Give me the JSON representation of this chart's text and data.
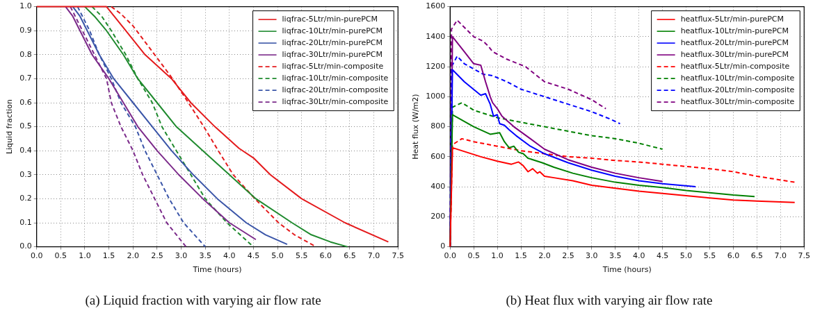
{
  "chart_data": [
    {
      "type": "line",
      "xlabel": "Time (hours)",
      "ylabel": "Liquid fraction",
      "annotations": [
        "(a) Liquid fraction with varying air flow rate"
      ],
      "xlim": [
        0,
        7.5
      ],
      "xticks": [
        {
          "value": 0,
          "label": "0.0"
        },
        {
          "value": 0.5,
          "label": "0.5"
        },
        {
          "value": 1,
          "label": "1.0"
        },
        {
          "value": 1.5,
          "label": "1.5"
        },
        {
          "value": 2,
          "label": "2.0"
        },
        {
          "value": 2.5,
          "label": "2.5"
        },
        {
          "value": 3,
          "label": "3.0"
        },
        {
          "value": 3.5,
          "label": "3.5"
        },
        {
          "value": 4,
          "label": "4.0"
        },
        {
          "value": 4.5,
          "label": "4.5"
        },
        {
          "value": 5,
          "label": "5.0"
        },
        {
          "value": 5.5,
          "label": "5.5"
        },
        {
          "value": 6,
          "label": "6.0"
        },
        {
          "value": 6.5,
          "label": "6.5"
        },
        {
          "value": 7,
          "label": "7.0"
        },
        {
          "value": 7.5,
          "label": "7.5"
        }
      ],
      "ylim": [
        0,
        1
      ],
      "yticks": [
        {
          "value": 0,
          "label": "0.0"
        },
        {
          "value": 0.1,
          "label": "0.1"
        },
        {
          "value": 0.2,
          "label": "0.2"
        },
        {
          "value": 0.3,
          "label": "0.3"
        },
        {
          "value": 0.4,
          "label": "0.4"
        },
        {
          "value": 0.5,
          "label": "0.5"
        },
        {
          "value": 0.6,
          "label": "0.6"
        },
        {
          "value": 0.7,
          "label": "0.7"
        },
        {
          "value": 0.8,
          "label": "0.8"
        },
        {
          "value": 0.9,
          "label": "0.9"
        },
        {
          "value": 1,
          "label": "1.0"
        }
      ],
      "grid": true,
      "legend": "top right",
      "series": [
        {
          "name": "liqfrac-5Ltr/min-purePCM",
          "color": "#e41a1c",
          "line_style": "solid",
          "x": [
            0,
            1.45,
            1.65,
            1.85,
            2.25,
            2.8,
            3.2,
            3.7,
            4.2,
            4.5,
            4.85,
            5.5,
            6.4,
            7.3
          ],
          "values": [
            1,
            1,
            0.95,
            0.9,
            0.8,
            0.7,
            0.6,
            0.5,
            0.41,
            0.37,
            0.3,
            0.2,
            0.1,
            0.02
          ]
        },
        {
          "name": "liqfrac-10Ltr/min-purePCM",
          "color": "#1f8a2e",
          "line_style": "solid",
          "x": [
            1.0,
            1.2,
            1.45,
            1.8,
            2.1,
            2.5,
            2.9,
            3.45,
            4.0,
            4.55,
            5.3,
            5.7,
            6.1,
            6.45
          ],
          "values": [
            1,
            0.96,
            0.9,
            0.8,
            0.7,
            0.6,
            0.5,
            0.4,
            0.3,
            0.2,
            0.1,
            0.05,
            0.02,
            0
          ]
        },
        {
          "name": "liqfrac-20Ltr/min-purePCM",
          "color": "#3a55a8",
          "line_style": "solid",
          "x": [
            0.75,
            0.9,
            1.05,
            1.3,
            1.6,
            2.0,
            2.4,
            2.8,
            3.25,
            3.75,
            4.35,
            4.75,
            5.2
          ],
          "values": [
            1,
            0.96,
            0.9,
            0.8,
            0.7,
            0.6,
            0.5,
            0.4,
            0.3,
            0.2,
            0.1,
            0.05,
            0.01
          ]
        },
        {
          "name": "liqfrac-30Ltr/min-purePCM",
          "color": "#7b2a8a",
          "line_style": "solid",
          "x": [
            0.6,
            0.75,
            0.9,
            1.15,
            1.5,
            1.8,
            2.1,
            2.5,
            2.95,
            3.45,
            4.0,
            4.55
          ],
          "values": [
            1,
            0.96,
            0.9,
            0.8,
            0.7,
            0.6,
            0.5,
            0.4,
            0.3,
            0.2,
            0.1,
            0.03
          ]
        },
        {
          "name": "liqfrac-5Ltr/min-composite",
          "color": "#e41a1c",
          "line_style": "dashed",
          "x": [
            1.55,
            1.75,
            2.0,
            2.45,
            2.82,
            3.15,
            3.47,
            3.77,
            4.08,
            4.53,
            5.02,
            5.35,
            5.8
          ],
          "values": [
            1,
            0.97,
            0.92,
            0.8,
            0.7,
            0.6,
            0.5,
            0.4,
            0.3,
            0.2,
            0.1,
            0.05,
            0
          ]
        },
        {
          "name": "liqfrac-10Ltr/min-composite",
          "color": "#1f8a2e",
          "line_style": "dashed",
          "x": [
            1.15,
            1.35,
            1.55,
            1.85,
            2.1,
            2.4,
            2.6,
            2.9,
            3.2,
            3.5,
            3.95,
            4.5
          ],
          "values": [
            1,
            0.96,
            0.9,
            0.8,
            0.7,
            0.6,
            0.5,
            0.4,
            0.3,
            0.2,
            0.1,
            0
          ]
        },
        {
          "name": "liqfrac-20Ltr/min-composite",
          "color": "#3a55a8",
          "line_style": "dashed",
          "x": [
            0.85,
            0.95,
            1.1,
            1.3,
            1.55,
            1.75,
            2.05,
            2.25,
            2.5,
            2.75,
            3.05,
            3.5
          ],
          "values": [
            1,
            0.96,
            0.9,
            0.8,
            0.7,
            0.6,
            0.5,
            0.4,
            0.3,
            0.2,
            0.1,
            0
          ]
        },
        {
          "name": "liqfrac-30Ltr/min-composite",
          "color": "#7b2a8a",
          "line_style": "dashed",
          "x": [
            0.7,
            0.8,
            0.95,
            1.2,
            1.45,
            1.55,
            1.75,
            2.0,
            2.2,
            2.45,
            2.7,
            3.1
          ],
          "values": [
            1,
            0.96,
            0.9,
            0.8,
            0.7,
            0.6,
            0.5,
            0.4,
            0.3,
            0.2,
            0.1,
            0
          ]
        }
      ]
    },
    {
      "type": "line",
      "xlabel": "Time (hours)",
      "ylabel": "Heat flux (W/m2)",
      "annotations": [
        "(b) Heat flux with varying air flow rate"
      ],
      "xlim": [
        0,
        7.5
      ],
      "xticks": [
        {
          "value": 0,
          "label": "0.0"
        },
        {
          "value": 0.5,
          "label": "0.5"
        },
        {
          "value": 1,
          "label": "1.0"
        },
        {
          "value": 1.5,
          "label": "1.5"
        },
        {
          "value": 2,
          "label": "2.0"
        },
        {
          "value": 2.5,
          "label": "2.5"
        },
        {
          "value": 3,
          "label": "3.0"
        },
        {
          "value": 3.5,
          "label": "3.5"
        },
        {
          "value": 4,
          "label": "4.0"
        },
        {
          "value": 4.5,
          "label": "4.5"
        },
        {
          "value": 5,
          "label": "5.0"
        },
        {
          "value": 5.5,
          "label": "5.5"
        },
        {
          "value": 6,
          "label": "6.0"
        },
        {
          "value": 6.5,
          "label": "6.5"
        },
        {
          "value": 7,
          "label": "7.0"
        },
        {
          "value": 7.5,
          "label": "7.5"
        }
      ],
      "ylim": [
        0,
        1600
      ],
      "yticks": [
        0,
        200,
        400,
        600,
        800,
        1000,
        1200,
        1400,
        1600
      ],
      "grid": true,
      "legend": "top right",
      "series": [
        {
          "name": "heatflux-5Ltr/min-purePCM",
          "color": "#ff0000",
          "line_style": "solid",
          "x": [
            0,
            0.05,
            0.65,
            1.0,
            1.3,
            1.45,
            1.55,
            1.65,
            1.75,
            1.85,
            1.9,
            2.0,
            2.2,
            2.6,
            3.0,
            3.5,
            4.0,
            4.5,
            5.0,
            5.5,
            6.0,
            6.5,
            7.3
          ],
          "values": [
            0,
            660,
            600,
            570,
            550,
            565,
            540,
            500,
            520,
            490,
            500,
            470,
            460,
            440,
            410,
            390,
            370,
            355,
            340,
            325,
            312,
            305,
            295
          ]
        },
        {
          "name": "heatflux-10Ltr/min-purePCM",
          "color": "#008000",
          "line_style": "solid",
          "x": [
            0,
            0.05,
            0.5,
            0.85,
            1.05,
            1.15,
            1.25,
            1.35,
            1.45,
            1.55,
            1.65,
            1.95,
            2.2,
            2.6,
            3.0,
            3.5,
            4.0,
            4.5,
            5.0,
            5.5,
            6.0,
            6.45
          ],
          "values": [
            0,
            880,
            800,
            750,
            760,
            700,
            660,
            670,
            630,
            620,
            590,
            560,
            530,
            490,
            460,
            430,
            410,
            395,
            375,
            360,
            345,
            335
          ]
        },
        {
          "name": "heatflux-20Ltr/min-purePCM",
          "color": "#0000ff",
          "line_style": "solid",
          "x": [
            0,
            0.05,
            0.3,
            0.65,
            0.75,
            0.85,
            0.92,
            1.0,
            1.05,
            1.15,
            1.25,
            1.4,
            1.7,
            2.0,
            2.5,
            3.0,
            3.5,
            4.0,
            4.5,
            5.2
          ],
          "values": [
            0,
            1180,
            1100,
            1010,
            1020,
            950,
            870,
            880,
            820,
            810,
            780,
            740,
            670,
            620,
            560,
            510,
            470,
            440,
            420,
            400
          ]
        },
        {
          "name": "heatflux-30Ltr/min-purePCM",
          "color": "#800080",
          "line_style": "solid",
          "x": [
            0,
            0.05,
            0.3,
            0.5,
            0.65,
            0.75,
            0.85,
            0.9,
            1.0,
            1.1,
            1.35,
            1.7,
            2.0,
            2.5,
            3.0,
            3.5,
            4.0,
            4.5
          ],
          "values": [
            0,
            1400,
            1300,
            1220,
            1210,
            1100,
            1000,
            960,
            920,
            870,
            800,
            720,
            650,
            580,
            530,
            490,
            460,
            435
          ]
        },
        {
          "name": "heatflux-5Ltr/min-composite",
          "color": "#ff0000",
          "line_style": "dashed",
          "x": [
            0,
            0.05,
            0.25,
            0.5,
            1.0,
            1.5,
            2.0,
            2.5,
            3.0,
            3.5,
            4.0,
            4.5,
            5.0,
            5.5,
            6.0,
            6.5,
            7.3
          ],
          "values": [
            0,
            680,
            720,
            700,
            670,
            640,
            620,
            600,
            590,
            575,
            565,
            550,
            535,
            520,
            500,
            470,
            430
          ]
        },
        {
          "name": "heatflux-10Ltr/min-composite",
          "color": "#008000",
          "line_style": "dashed",
          "x": [
            0,
            0.05,
            0.25,
            0.5,
            1.0,
            1.5,
            2.0,
            2.5,
            3.0,
            3.5,
            4.0,
            4.5
          ],
          "values": [
            0,
            930,
            960,
            910,
            860,
            830,
            800,
            770,
            740,
            720,
            690,
            650
          ]
        },
        {
          "name": "heatflux-20Ltr/min-composite",
          "color": "#0000ff",
          "line_style": "dashed",
          "x": [
            0,
            0.03,
            0.15,
            0.3,
            0.7,
            0.9,
            1.2,
            1.5,
            2.0,
            2.5,
            3.0,
            3.4,
            3.6
          ],
          "values": [
            0,
            1200,
            1270,
            1220,
            1150,
            1140,
            1100,
            1050,
            1000,
            950,
            900,
            850,
            820
          ]
        },
        {
          "name": "heatflux-30Ltr/min-composite",
          "color": "#800080",
          "line_style": "dashed",
          "x": [
            0,
            0.03,
            0.15,
            0.5,
            0.7,
            0.8,
            0.9,
            1.2,
            1.6,
            2.0,
            2.5,
            3.0,
            3.3
          ],
          "values": [
            0,
            1450,
            1510,
            1400,
            1370,
            1340,
            1300,
            1250,
            1200,
            1100,
            1050,
            980,
            920
          ]
        }
      ]
    }
  ]
}
